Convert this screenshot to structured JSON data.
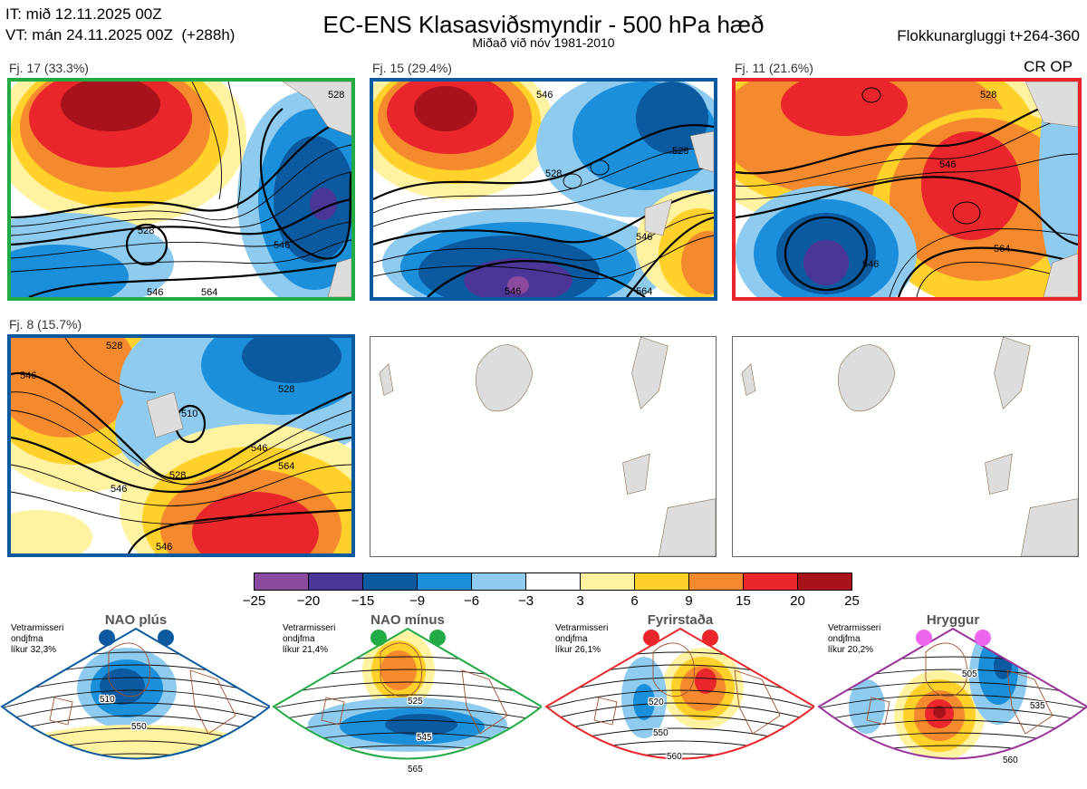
{
  "header": {
    "it_line": "IT: mið 12.11.2025 00Z",
    "vt_line": "VT: mán 24.11.2025 00Z  (+288h)",
    "title": "EC-ENS Klasasviðsmyndir - 500 hPa hæð",
    "subtitle": "Miðað við nóv 1981-2010",
    "window_label": "Flokkunargluggi t+264-360"
  },
  "panels": [
    {
      "label": "Fj. 17 (33.3%)",
      "border_color": "#22aa44",
      "contours": [
        "528",
        "546",
        "528",
        "546",
        "564"
      ]
    },
    {
      "label": "Fj. 15 (29.4%)",
      "border_color": "#0b5aa0",
      "contours": [
        "546",
        "528",
        "546",
        "528",
        "546",
        "564"
      ]
    },
    {
      "label": "Fj. 11 (21.6%)",
      "border_color": "#e8262b",
      "contours": [
        "528",
        "546",
        "546",
        "564"
      ]
    },
    {
      "label": "Fj. 8 (15.7%)",
      "border_color": "#0b5aa0",
      "contours": [
        "528",
        "546",
        "510",
        "528",
        "546",
        "564",
        "528",
        "546",
        "546"
      ]
    }
  ],
  "cr_op_label": "CR OP",
  "colorbar": {
    "ticks": [
      "−25",
      "−20",
      "−15",
      "−9",
      "−6",
      "−3",
      "3",
      "6",
      "9",
      "15",
      "20",
      "25"
    ],
    "colors": [
      "#8c4a9e",
      "#4b3596",
      "#0b5aa0",
      "#1c8fdb",
      "#8ecbef",
      "#ffffff",
      "#fff2a0",
      "#ffd12a",
      "#f4892e",
      "#e8262b",
      "#a8121a"
    ]
  },
  "regimes": [
    {
      "name": "NAO plús",
      "color": "#0b5aa0",
      "note_l1": "Vetrarmisseri",
      "note_l2": "ondjfma",
      "note_l3": "líkur 32,3%",
      "labels": [
        "510",
        "550"
      ]
    },
    {
      "name": "NAO mínus",
      "color": "#22aa44",
      "note_l1": "Vetrarmisseri",
      "note_l2": "ondjfma",
      "note_l3": "líkur 21,4%",
      "labels": [
        "525",
        "545",
        "565"
      ]
    },
    {
      "name": "Fyrirstaða",
      "color": "#e8262b",
      "note_l1": "Vetrarmisseri",
      "note_l2": "ondjfma",
      "note_l3": "líkur 26,1%",
      "labels": [
        "520",
        "550",
        "560"
      ]
    },
    {
      "name": "Hryggur",
      "color": "#993399",
      "dot_color": "#ee66ee",
      "note_l1": "Vetrarmisseri",
      "note_l2": "ondjfma",
      "note_l3": "líkur 20,2%",
      "labels": [
        "505",
        "535",
        "560"
      ]
    }
  ]
}
